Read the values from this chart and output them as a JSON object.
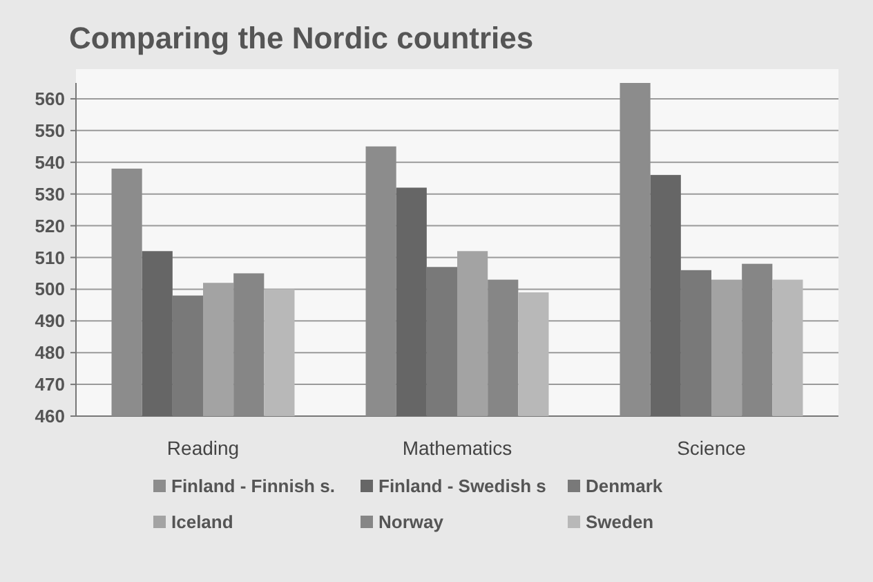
{
  "chart_data": {
    "type": "bar",
    "title": "Comparing the Nordic countries",
    "categories": [
      "Reading",
      "Mathematics",
      "Science"
    ],
    "series": [
      {
        "name": "Finland - Finnish s.",
        "color": "#8c8c8c",
        "values": [
          538,
          545,
          565
        ]
      },
      {
        "name": "Finland - Swedish s",
        "color": "#666666",
        "values": [
          512,
          532,
          536
        ]
      },
      {
        "name": "Denmark",
        "color": "#797979",
        "values": [
          498,
          507,
          506
        ]
      },
      {
        "name": "Iceland",
        "color": "#a3a3a3",
        "values": [
          502,
          512,
          503
        ]
      },
      {
        "name": "Norway",
        "color": "#868686",
        "values": [
          505,
          503,
          508
        ]
      },
      {
        "name": "Sweden",
        "color": "#b8b8b8",
        "values": [
          500,
          499,
          503
        ]
      }
    ],
    "ylim": [
      460,
      565
    ],
    "yticks": [
      460,
      470,
      480,
      490,
      500,
      510,
      520,
      530,
      540,
      550,
      560
    ],
    "grid": "y",
    "legend": "bottom"
  }
}
